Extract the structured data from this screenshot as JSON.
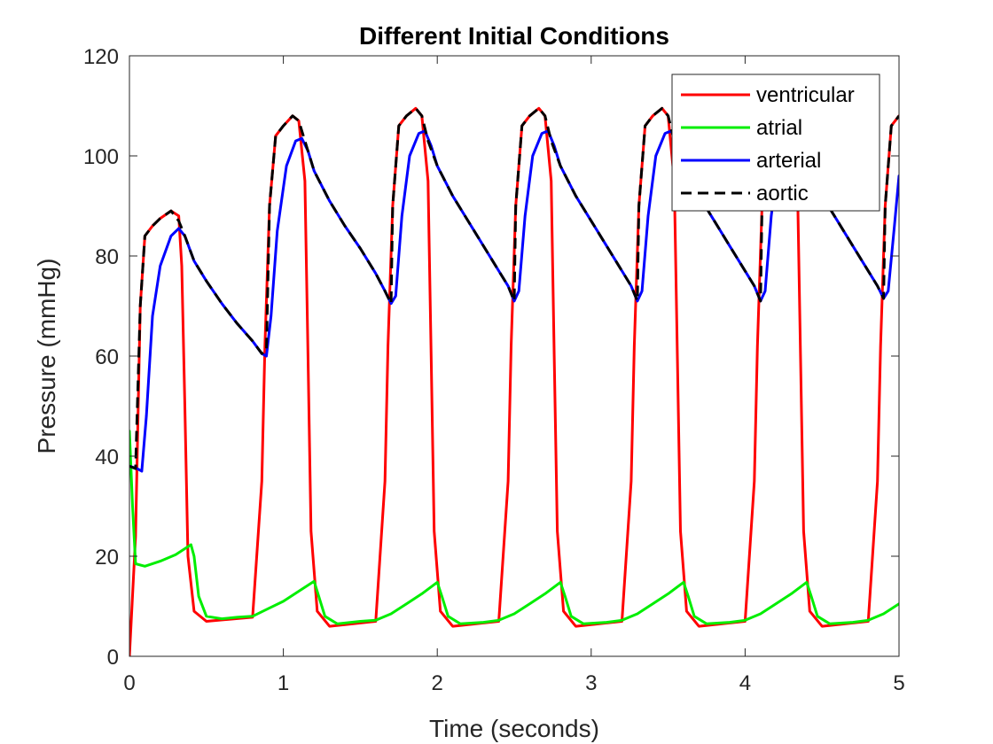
{
  "chart_data": {
    "type": "line",
    "title": "Different Initial Conditions",
    "xlabel": "Time (seconds)",
    "ylabel": "Pressure (mmHg)",
    "xlim": [
      0,
      5
    ],
    "ylim": [
      0,
      120
    ],
    "xticks": [
      0,
      1,
      2,
      3,
      4,
      5
    ],
    "yticks": [
      0,
      20,
      40,
      60,
      80,
      100,
      120
    ],
    "grid": false,
    "box": true,
    "legend_position": "top-right",
    "cycle": {
      "first_beat_start_s": 0.0,
      "period_s": 0.8,
      "systole_s": 0.4
    },
    "series": [
      {
        "name": "ventricular",
        "color": "#ff0000",
        "dash": "solid",
        "points": [
          [
            0,
            0
          ],
          [
            0.04,
            24
          ],
          [
            0.07,
            70
          ],
          [
            0.1,
            84
          ],
          [
            0.15,
            86
          ],
          [
            0.2,
            87.5
          ],
          [
            0.27,
            89
          ],
          [
            0.32,
            88
          ],
          [
            0.34,
            78
          ],
          [
            0.36,
            50
          ],
          [
            0.38,
            20
          ],
          [
            0.42,
            9
          ],
          [
            0.5,
            7
          ],
          [
            0.8,
            7.8
          ],
          [
            0.86,
            35
          ],
          [
            0.88,
            62
          ],
          [
            0.91,
            90
          ],
          [
            0.95,
            104
          ],
          [
            1.0,
            106
          ],
          [
            1.06,
            108
          ],
          [
            1.1,
            107
          ],
          [
            1.14,
            95
          ],
          [
            1.16,
            60
          ],
          [
            1.18,
            25
          ],
          [
            1.22,
            9
          ],
          [
            1.3,
            6
          ],
          [
            1.6,
            7
          ],
          [
            1.66,
            35
          ],
          [
            1.68,
            62
          ],
          [
            1.71,
            90
          ],
          [
            1.75,
            106
          ],
          [
            1.8,
            108
          ],
          [
            1.86,
            109.5
          ],
          [
            1.9,
            108
          ],
          [
            1.94,
            95
          ],
          [
            1.96,
            60
          ],
          [
            1.98,
            25
          ],
          [
            2.02,
            9
          ],
          [
            2.1,
            6
          ],
          [
            2.4,
            7
          ],
          [
            2.46,
            35
          ],
          [
            2.48,
            62
          ],
          [
            2.51,
            90
          ],
          [
            2.55,
            106
          ],
          [
            2.6,
            108
          ],
          [
            2.66,
            109.5
          ],
          [
            2.7,
            108
          ],
          [
            2.74,
            95
          ],
          [
            2.76,
            60
          ],
          [
            2.78,
            25
          ],
          [
            2.82,
            9
          ],
          [
            2.9,
            6
          ],
          [
            3.2,
            7
          ],
          [
            3.26,
            35
          ],
          [
            3.28,
            62
          ],
          [
            3.31,
            90
          ],
          [
            3.35,
            106
          ],
          [
            3.4,
            108
          ],
          [
            3.46,
            109.5
          ],
          [
            3.5,
            108
          ],
          [
            3.54,
            95
          ],
          [
            3.56,
            60
          ],
          [
            3.58,
            25
          ],
          [
            3.62,
            9
          ],
          [
            3.7,
            6
          ],
          [
            4.0,
            7
          ],
          [
            4.06,
            35
          ],
          [
            4.08,
            62
          ],
          [
            4.11,
            90
          ],
          [
            4.15,
            106
          ],
          [
            4.2,
            108
          ],
          [
            4.26,
            109.5
          ],
          [
            4.3,
            108
          ],
          [
            4.34,
            95
          ],
          [
            4.36,
            60
          ],
          [
            4.38,
            25
          ],
          [
            4.42,
            9
          ],
          [
            4.5,
            6
          ],
          [
            4.8,
            7
          ],
          [
            4.86,
            35
          ],
          [
            4.88,
            62
          ],
          [
            4.91,
            90
          ],
          [
            4.95,
            106
          ],
          [
            5.0,
            108
          ]
        ]
      },
      {
        "name": "atrial",
        "color": "#00ee00",
        "dash": "solid",
        "points": [
          [
            0,
            45
          ],
          [
            0.02,
            30
          ],
          [
            0.04,
            18.5
          ],
          [
            0.1,
            18
          ],
          [
            0.2,
            19
          ],
          [
            0.3,
            20.3
          ],
          [
            0.4,
            22.3
          ],
          [
            0.42,
            20
          ],
          [
            0.45,
            12
          ],
          [
            0.5,
            8
          ],
          [
            0.6,
            7.5
          ],
          [
            0.7,
            7.8
          ],
          [
            0.8,
            8
          ],
          [
            0.9,
            9.5
          ],
          [
            1.0,
            11
          ],
          [
            1.1,
            13
          ],
          [
            1.2,
            15
          ],
          [
            1.23,
            12
          ],
          [
            1.27,
            8
          ],
          [
            1.35,
            6.5
          ],
          [
            1.5,
            7
          ],
          [
            1.6,
            7.2
          ],
          [
            1.7,
            8.5
          ],
          [
            1.8,
            10.5
          ],
          [
            1.9,
            12.5
          ],
          [
            2.0,
            14.8
          ],
          [
            2.03,
            12
          ],
          [
            2.07,
            8
          ],
          [
            2.15,
            6.5
          ],
          [
            2.3,
            6.8
          ],
          [
            2.4,
            7.2
          ],
          [
            2.5,
            8.5
          ],
          [
            2.6,
            10.5
          ],
          [
            2.7,
            12.5
          ],
          [
            2.8,
            14.8
          ],
          [
            2.83,
            12
          ],
          [
            2.87,
            8
          ],
          [
            2.95,
            6.5
          ],
          [
            3.1,
            6.8
          ],
          [
            3.2,
            7.2
          ],
          [
            3.3,
            8.5
          ],
          [
            3.4,
            10.5
          ],
          [
            3.5,
            12.5
          ],
          [
            3.6,
            14.8
          ],
          [
            3.63,
            12
          ],
          [
            3.67,
            8
          ],
          [
            3.75,
            6.5
          ],
          [
            3.9,
            6.8
          ],
          [
            4.0,
            7.2
          ],
          [
            4.1,
            8.5
          ],
          [
            4.2,
            10.5
          ],
          [
            4.3,
            12.5
          ],
          [
            4.4,
            14.8
          ],
          [
            4.43,
            12
          ],
          [
            4.47,
            8
          ],
          [
            4.55,
            6.5
          ],
          [
            4.7,
            6.8
          ],
          [
            4.8,
            7.2
          ],
          [
            4.9,
            8.5
          ],
          [
            5.0,
            10.5
          ]
        ]
      },
      {
        "name": "arterial",
        "color": "#0000ff",
        "dash": "solid",
        "points": [
          [
            0,
            38
          ],
          [
            0.05,
            37.5
          ],
          [
            0.08,
            37
          ],
          [
            0.11,
            48
          ],
          [
            0.15,
            68
          ],
          [
            0.2,
            78
          ],
          [
            0.27,
            84
          ],
          [
            0.32,
            85.5
          ],
          [
            0.36,
            84
          ],
          [
            0.42,
            79
          ],
          [
            0.5,
            75
          ],
          [
            0.6,
            70.5
          ],
          [
            0.7,
            66.5
          ],
          [
            0.8,
            63
          ],
          [
            0.86,
            60.5
          ],
          [
            0.89,
            60
          ],
          [
            0.92,
            68
          ],
          [
            0.96,
            85
          ],
          [
            1.02,
            98
          ],
          [
            1.08,
            103
          ],
          [
            1.12,
            103.5
          ],
          [
            1.16,
            101
          ],
          [
            1.2,
            97
          ],
          [
            1.3,
            91
          ],
          [
            1.4,
            86
          ],
          [
            1.5,
            81.5
          ],
          [
            1.6,
            76.5
          ],
          [
            1.66,
            73
          ],
          [
            1.7,
            70.5
          ],
          [
            1.73,
            72
          ],
          [
            1.77,
            88
          ],
          [
            1.82,
            100
          ],
          [
            1.88,
            104.5
          ],
          [
            1.92,
            105
          ],
          [
            1.96,
            102
          ],
          [
            2.0,
            98
          ],
          [
            2.1,
            92
          ],
          [
            2.2,
            87
          ],
          [
            2.3,
            82
          ],
          [
            2.4,
            77
          ],
          [
            2.46,
            74
          ],
          [
            2.5,
            71
          ],
          [
            2.53,
            73
          ],
          [
            2.57,
            88
          ],
          [
            2.62,
            100
          ],
          [
            2.68,
            104.5
          ],
          [
            2.72,
            105
          ],
          [
            2.76,
            102
          ],
          [
            2.8,
            98
          ],
          [
            2.9,
            92
          ],
          [
            3.0,
            87
          ],
          [
            3.1,
            82
          ],
          [
            3.2,
            77
          ],
          [
            3.26,
            74
          ],
          [
            3.3,
            71
          ],
          [
            3.33,
            73
          ],
          [
            3.37,
            88
          ],
          [
            3.42,
            100
          ],
          [
            3.48,
            104.5
          ],
          [
            3.52,
            105
          ],
          [
            3.56,
            102
          ],
          [
            3.6,
            98
          ],
          [
            3.7,
            92
          ],
          [
            3.8,
            87
          ],
          [
            3.9,
            82
          ],
          [
            4.0,
            77
          ],
          [
            4.06,
            74
          ],
          [
            4.1,
            71
          ],
          [
            4.13,
            73
          ],
          [
            4.17,
            88
          ],
          [
            4.22,
            100
          ],
          [
            4.28,
            104.5
          ],
          [
            4.32,
            105
          ],
          [
            4.36,
            102
          ],
          [
            4.4,
            98
          ],
          [
            4.5,
            92
          ],
          [
            4.6,
            87
          ],
          [
            4.7,
            82
          ],
          [
            4.8,
            77
          ],
          [
            4.86,
            74
          ],
          [
            4.9,
            71.5
          ],
          [
            4.93,
            73
          ],
          [
            4.97,
            86
          ],
          [
            5.0,
            96
          ]
        ]
      },
      {
        "name": "aortic",
        "color": "#000000",
        "dash": "dashed",
        "points": [
          [
            0,
            38
          ],
          [
            0.04,
            37.5
          ],
          [
            0.07,
            70
          ],
          [
            0.1,
            84
          ],
          [
            0.15,
            86
          ],
          [
            0.2,
            87.5
          ],
          [
            0.27,
            89
          ],
          [
            0.32,
            87
          ],
          [
            0.36,
            84
          ],
          [
            0.42,
            79
          ],
          [
            0.5,
            75
          ],
          [
            0.6,
            70.5
          ],
          [
            0.7,
            66.5
          ],
          [
            0.8,
            63
          ],
          [
            0.86,
            60.5
          ],
          [
            0.89,
            61
          ],
          [
            0.91,
            90
          ],
          [
            0.95,
            104
          ],
          [
            1.0,
            106
          ],
          [
            1.06,
            108
          ],
          [
            1.1,
            107
          ],
          [
            1.14,
            103
          ],
          [
            1.2,
            97
          ],
          [
            1.3,
            91
          ],
          [
            1.4,
            86
          ],
          [
            1.5,
            81.5
          ],
          [
            1.6,
            76.5
          ],
          [
            1.66,
            73
          ],
          [
            1.7,
            70.5
          ],
          [
            1.71,
            90
          ],
          [
            1.75,
            106
          ],
          [
            1.8,
            108
          ],
          [
            1.86,
            109.5
          ],
          [
            1.9,
            108
          ],
          [
            1.94,
            103
          ],
          [
            2.0,
            98
          ],
          [
            2.1,
            92
          ],
          [
            2.2,
            87
          ],
          [
            2.3,
            82
          ],
          [
            2.4,
            77
          ],
          [
            2.46,
            74
          ],
          [
            2.5,
            71
          ],
          [
            2.51,
            90
          ],
          [
            2.55,
            106
          ],
          [
            2.6,
            108
          ],
          [
            2.66,
            109.5
          ],
          [
            2.7,
            108
          ],
          [
            2.74,
            103
          ],
          [
            2.8,
            98
          ],
          [
            2.9,
            92
          ],
          [
            3.0,
            87
          ],
          [
            3.1,
            82
          ],
          [
            3.2,
            77
          ],
          [
            3.26,
            74
          ],
          [
            3.3,
            71
          ],
          [
            3.31,
            90
          ],
          [
            3.35,
            106
          ],
          [
            3.4,
            108
          ],
          [
            3.46,
            109.5
          ],
          [
            3.5,
            108
          ],
          [
            3.54,
            103
          ],
          [
            3.6,
            98
          ],
          [
            3.7,
            92
          ],
          [
            3.8,
            87
          ],
          [
            3.9,
            82
          ],
          [
            4.0,
            77
          ],
          [
            4.06,
            74
          ],
          [
            4.1,
            71
          ],
          [
            4.11,
            90
          ],
          [
            4.15,
            106
          ],
          [
            4.2,
            108
          ],
          [
            4.26,
            109.5
          ],
          [
            4.3,
            108
          ],
          [
            4.34,
            103
          ],
          [
            4.4,
            98
          ],
          [
            4.5,
            92
          ],
          [
            4.6,
            87
          ],
          [
            4.7,
            82
          ],
          [
            4.8,
            77
          ],
          [
            4.86,
            74
          ],
          [
            4.9,
            71.5
          ],
          [
            4.91,
            90
          ],
          [
            4.95,
            106
          ],
          [
            5.0,
            108
          ]
        ]
      }
    ]
  }
}
